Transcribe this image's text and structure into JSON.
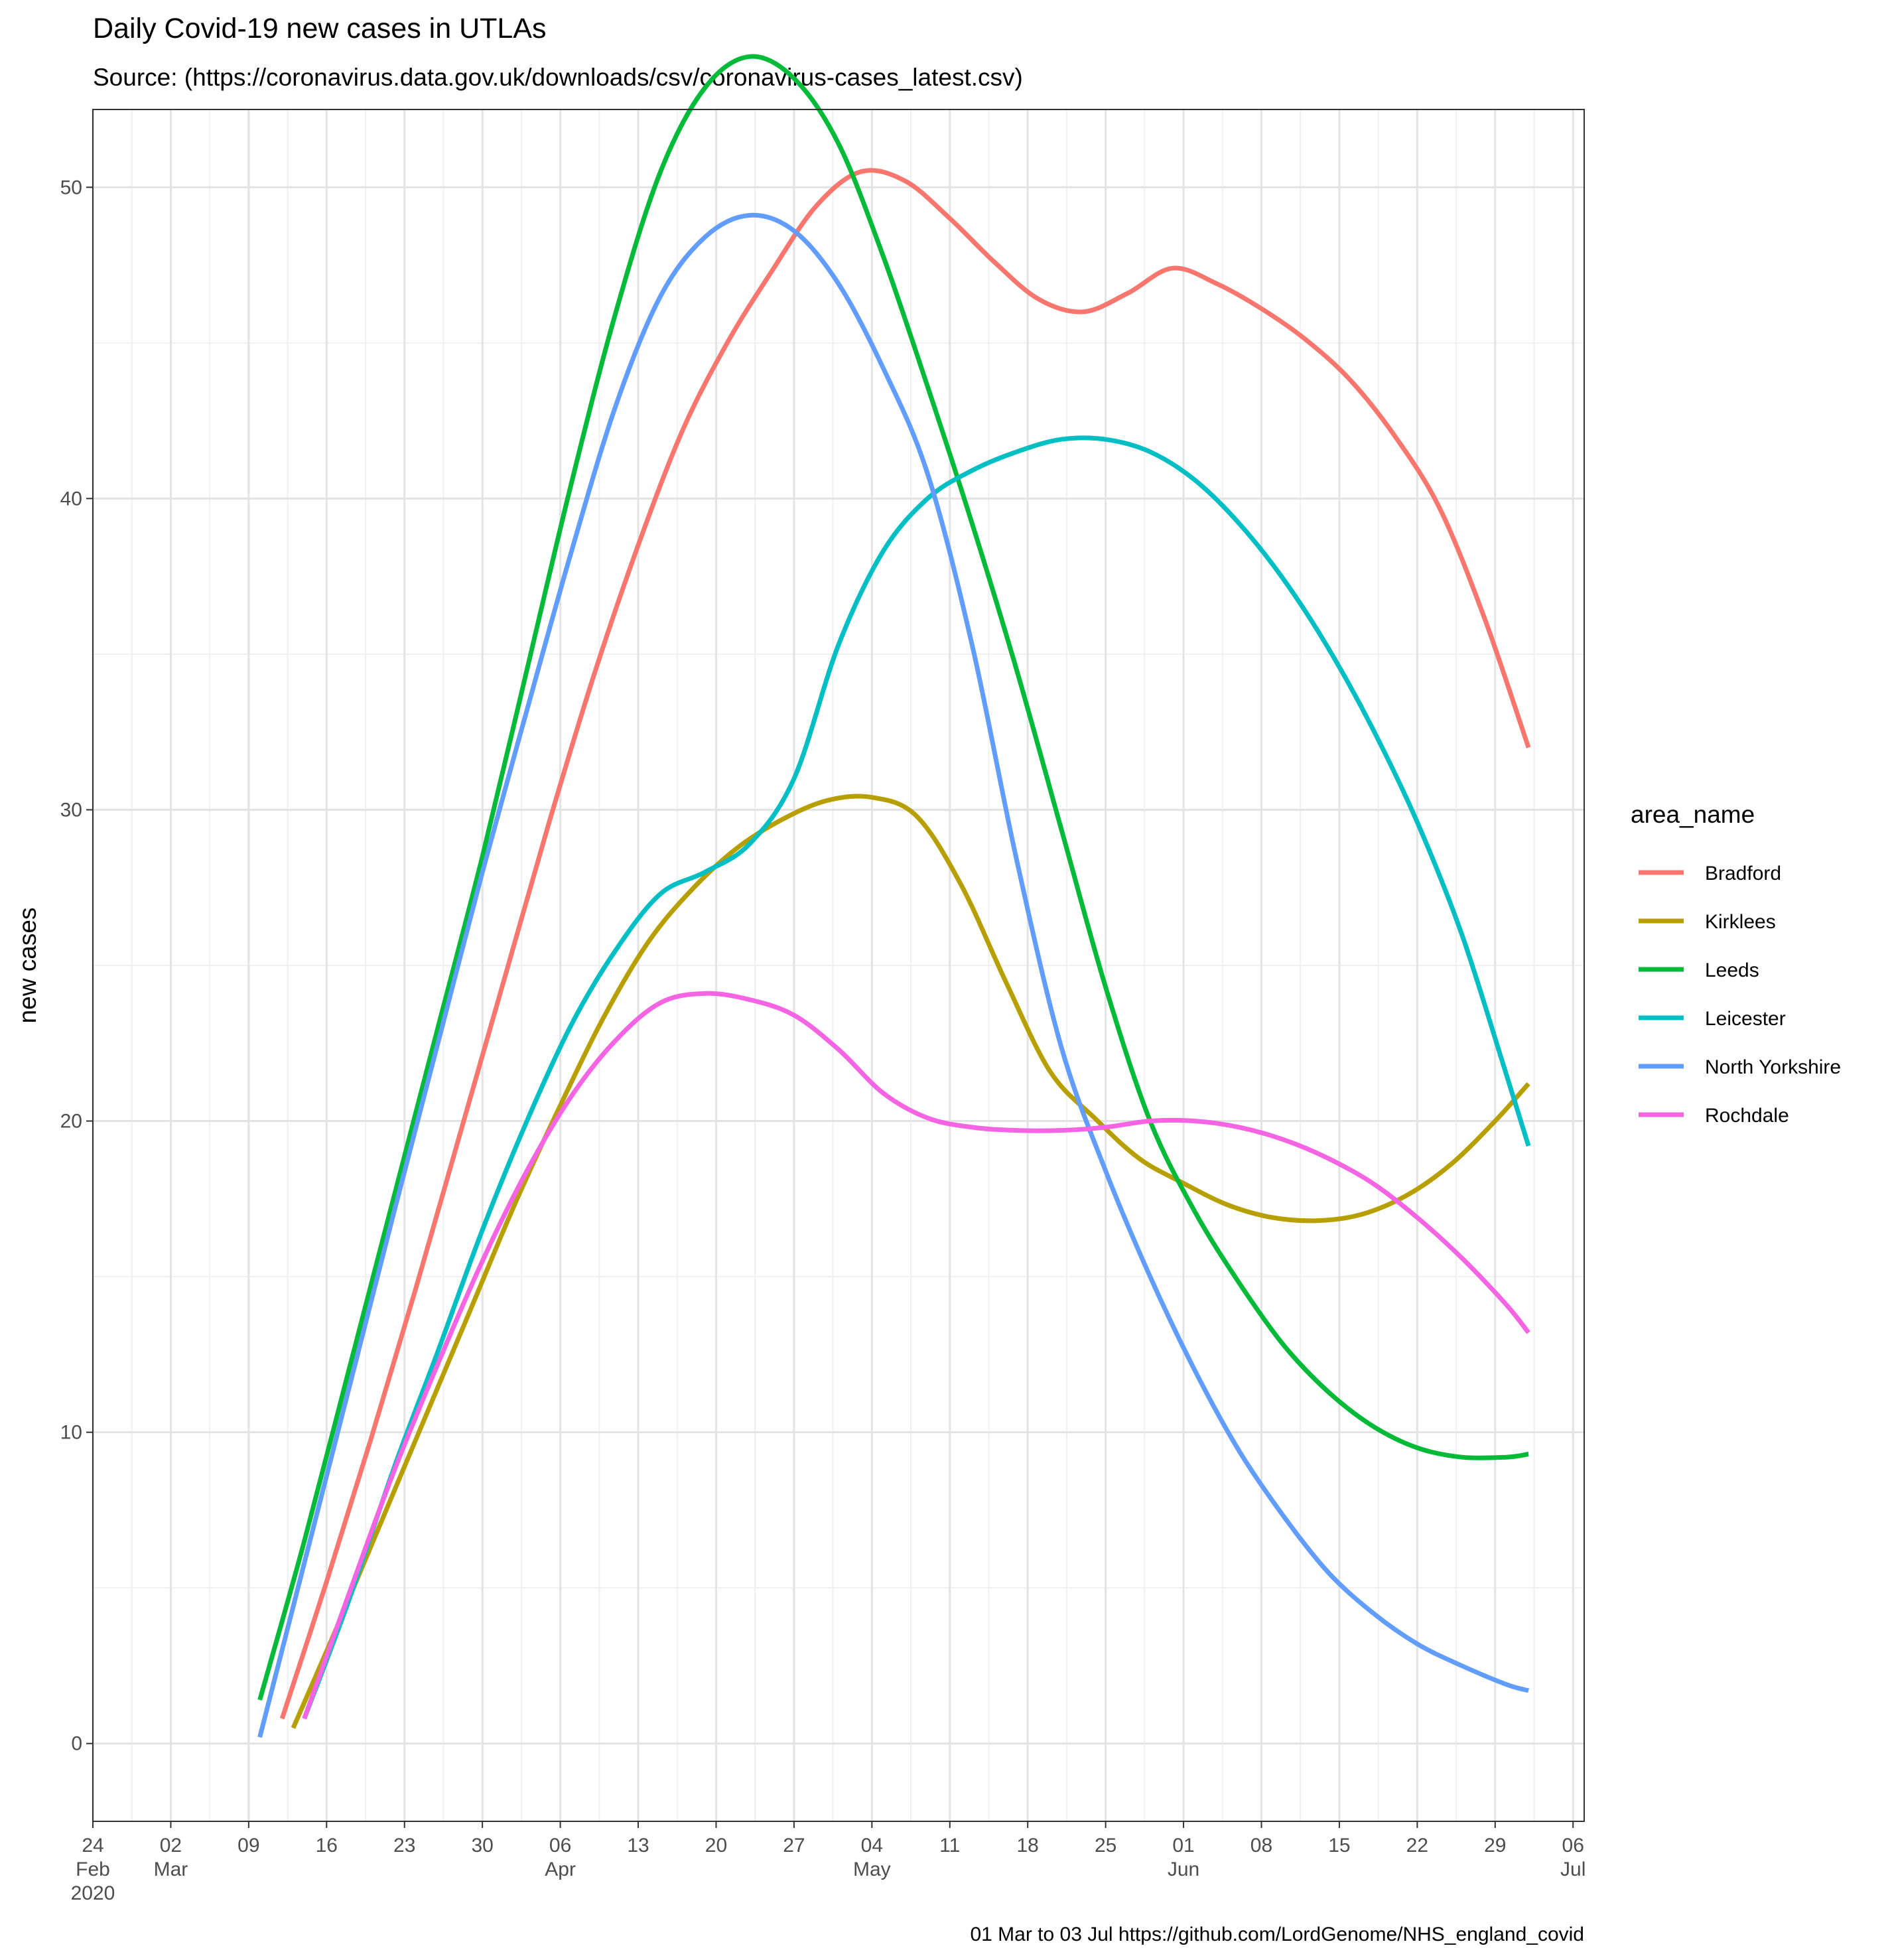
{
  "title": "Daily Covid-19 new cases in UTLAs",
  "subtitle": "Source: (https://coronavirus.data.gov.uk/downloads/csv/coronavirus-cases_latest.csv)",
  "caption": "01 Mar to 03 Jul https://github.com/LordGenome/NHS_england_covid",
  "chart_data": {
    "type": "line",
    "title": "Daily Covid-19 new cases in UTLAs",
    "subtitle": "Source: (https://coronavirus.data.gov.uk/downloads/csv/coronavirus-cases_latest.csv)",
    "xlabel": "",
    "ylabel": "new cases",
    "legend_title": "area_name",
    "legend_position": "right",
    "grid": true,
    "xlim": [
      "2020-02-24",
      "2020-07-07"
    ],
    "ylim": [
      -2.5,
      52.5
    ],
    "y_ticks": [
      0,
      10,
      20,
      30,
      40,
      50
    ],
    "x_ticks": [
      {
        "date": "2020-02-24",
        "lines": [
          "24",
          "Feb",
          "2020"
        ]
      },
      {
        "date": "2020-03-02",
        "lines": [
          "02",
          "Mar"
        ]
      },
      {
        "date": "2020-03-09",
        "lines": [
          "09"
        ]
      },
      {
        "date": "2020-03-16",
        "lines": [
          "16"
        ]
      },
      {
        "date": "2020-03-23",
        "lines": [
          "23"
        ]
      },
      {
        "date": "2020-03-30",
        "lines": [
          "30"
        ]
      },
      {
        "date": "2020-04-06",
        "lines": [
          "06",
          "Apr"
        ]
      },
      {
        "date": "2020-04-13",
        "lines": [
          "13"
        ]
      },
      {
        "date": "2020-04-20",
        "lines": [
          "20"
        ]
      },
      {
        "date": "2020-04-27",
        "lines": [
          "27"
        ]
      },
      {
        "date": "2020-05-04",
        "lines": [
          "04",
          "May"
        ]
      },
      {
        "date": "2020-05-11",
        "lines": [
          "11"
        ]
      },
      {
        "date": "2020-05-18",
        "lines": [
          "18"
        ]
      },
      {
        "date": "2020-05-25",
        "lines": [
          "25"
        ]
      },
      {
        "date": "2020-06-01",
        "lines": [
          "01",
          "Jun"
        ]
      },
      {
        "date": "2020-06-08",
        "lines": [
          "08"
        ]
      },
      {
        "date": "2020-06-15",
        "lines": [
          "15"
        ]
      },
      {
        "date": "2020-06-22",
        "lines": [
          "22"
        ]
      },
      {
        "date": "2020-06-29",
        "lines": [
          "29"
        ]
      },
      {
        "date": "2020-07-06",
        "lines": [
          "06",
          "Jul"
        ]
      }
    ],
    "series": [
      {
        "name": "Bradford",
        "color": "#F8766D",
        "x": [
          "2020-03-12",
          "2020-03-16",
          "2020-03-20",
          "2020-03-24",
          "2020-03-28",
          "2020-04-01",
          "2020-04-05",
          "2020-04-09",
          "2020-04-13",
          "2020-04-17",
          "2020-04-21",
          "2020-04-25",
          "2020-04-29",
          "2020-05-03",
          "2020-05-07",
          "2020-05-11",
          "2020-05-15",
          "2020-05-19",
          "2020-05-23",
          "2020-05-27",
          "2020-05-31",
          "2020-06-04",
          "2020-06-08",
          "2020-06-12",
          "2020-06-16",
          "2020-06-20",
          "2020-06-24",
          "2020-06-28",
          "2020-07-02"
        ],
        "y": [
          0.8,
          5.2,
          9.8,
          14.6,
          19.6,
          24.6,
          29.6,
          34.3,
          38.5,
          42.2,
          45.0,
          47.3,
          49.4,
          50.5,
          50.2,
          49.0,
          47.6,
          46.4,
          46.0,
          46.6,
          47.4,
          46.9,
          46.1,
          45.1,
          43.8,
          42.0,
          39.7,
          36.2,
          32.0
        ]
      },
      {
        "name": "Kirklees",
        "color": "#B79F00",
        "x": [
          "2020-03-13",
          "2020-03-17",
          "2020-03-21",
          "2020-03-25",
          "2020-03-29",
          "2020-04-02",
          "2020-04-06",
          "2020-04-10",
          "2020-04-14",
          "2020-04-18",
          "2020-04-22",
          "2020-04-26",
          "2020-04-30",
          "2020-05-04",
          "2020-05-08",
          "2020-05-12",
          "2020-05-16",
          "2020-05-20",
          "2020-05-24",
          "2020-05-28",
          "2020-06-01",
          "2020-06-05",
          "2020-06-09",
          "2020-06-13",
          "2020-06-17",
          "2020-06-21",
          "2020-06-25",
          "2020-06-29",
          "2020-07-02"
        ],
        "y": [
          0.5,
          3.8,
          7.2,
          10.6,
          14.0,
          17.4,
          20.5,
          23.4,
          25.8,
          27.5,
          28.8,
          29.7,
          30.3,
          30.4,
          29.8,
          27.6,
          24.5,
          21.6,
          20.1,
          18.8,
          18.0,
          17.3,
          16.9,
          16.8,
          17.0,
          17.6,
          18.6,
          20.0,
          21.2
        ]
      },
      {
        "name": "Leeds",
        "color": "#00BA38",
        "x": [
          "2020-03-10",
          "2020-03-14",
          "2020-03-18",
          "2020-03-22",
          "2020-03-26",
          "2020-03-30",
          "2020-04-03",
          "2020-04-07",
          "2020-04-11",
          "2020-04-15",
          "2020-04-19",
          "2020-04-23",
          "2020-04-27",
          "2020-05-01",
          "2020-05-05",
          "2020-05-09",
          "2020-05-13",
          "2020-05-17",
          "2020-05-21",
          "2020-05-25",
          "2020-05-29",
          "2020-06-02",
          "2020-06-06",
          "2020-06-10",
          "2020-06-14",
          "2020-06-18",
          "2020-06-22",
          "2020-06-26",
          "2020-06-30",
          "2020-07-02"
        ],
        "y": [
          1.4,
          6.5,
          12.0,
          17.5,
          23.0,
          28.5,
          34.5,
          40.5,
          46.0,
          50.5,
          53.2,
          54.2,
          53.5,
          51.4,
          47.8,
          43.6,
          39.2,
          34.5,
          29.4,
          24.3,
          20.0,
          17.1,
          14.8,
          12.8,
          11.3,
          10.2,
          9.5,
          9.2,
          9.2,
          9.3
        ]
      },
      {
        "name": "Leicester",
        "color": "#00BFC4",
        "x": [
          "2020-03-14",
          "2020-03-18",
          "2020-03-22",
          "2020-03-26",
          "2020-03-30",
          "2020-04-03",
          "2020-04-07",
          "2020-04-11",
          "2020-04-15",
          "2020-04-19",
          "2020-04-23",
          "2020-04-27",
          "2020-05-01",
          "2020-05-05",
          "2020-05-09",
          "2020-05-13",
          "2020-05-17",
          "2020-05-21",
          "2020-05-25",
          "2020-05-29",
          "2020-06-02",
          "2020-06-06",
          "2020-06-10",
          "2020-06-14",
          "2020-06-18",
          "2020-06-22",
          "2020-06-26",
          "2020-06-30",
          "2020-07-02"
        ],
        "y": [
          0.8,
          4.6,
          8.8,
          12.6,
          16.5,
          20.0,
          23.1,
          25.5,
          27.3,
          28.0,
          28.9,
          31.0,
          35.3,
          38.3,
          40.0,
          40.9,
          41.5,
          41.9,
          41.9,
          41.5,
          40.6,
          39.2,
          37.4,
          35.2,
          32.6,
          29.6,
          26.0,
          21.5,
          19.2
        ]
      },
      {
        "name": "North Yorkshire",
        "color": "#619CFF",
        "x": [
          "2020-03-10",
          "2020-03-14",
          "2020-03-18",
          "2020-03-22",
          "2020-03-26",
          "2020-03-30",
          "2020-04-03",
          "2020-04-07",
          "2020-04-11",
          "2020-04-15",
          "2020-04-19",
          "2020-04-23",
          "2020-04-27",
          "2020-05-01",
          "2020-05-05",
          "2020-05-09",
          "2020-05-13",
          "2020-05-17",
          "2020-05-21",
          "2020-05-25",
          "2020-05-29",
          "2020-06-02",
          "2020-06-06",
          "2020-06-10",
          "2020-06-14",
          "2020-06-18",
          "2020-06-22",
          "2020-06-26",
          "2020-06-30",
          "2020-07-02"
        ],
        "y": [
          0.2,
          5.8,
          11.4,
          17.0,
          22.5,
          28.0,
          33.2,
          38.3,
          43.0,
          46.5,
          48.4,
          49.1,
          48.6,
          46.9,
          44.2,
          40.8,
          35.3,
          28.4,
          22.4,
          18.4,
          15.0,
          12.0,
          9.4,
          7.3,
          5.5,
          4.2,
          3.2,
          2.5,
          1.9,
          1.7
        ]
      },
      {
        "name": "Rochdale",
        "color": "#F564E3",
        "x": [
          "2020-03-14",
          "2020-03-18",
          "2020-03-22",
          "2020-03-26",
          "2020-03-30",
          "2020-04-03",
          "2020-04-07",
          "2020-04-11",
          "2020-04-15",
          "2020-04-19",
          "2020-04-23",
          "2020-04-27",
          "2020-05-01",
          "2020-05-05",
          "2020-05-09",
          "2020-05-13",
          "2020-05-17",
          "2020-05-21",
          "2020-05-25",
          "2020-05-29",
          "2020-06-02",
          "2020-06-06",
          "2020-06-10",
          "2020-06-14",
          "2020-06-18",
          "2020-06-22",
          "2020-06-26",
          "2020-06-30",
          "2020-07-02"
        ],
        "y": [
          0.8,
          4.8,
          8.7,
          12.2,
          15.5,
          18.4,
          20.8,
          22.6,
          23.8,
          24.1,
          23.9,
          23.4,
          22.3,
          20.9,
          20.1,
          19.8,
          19.7,
          19.7,
          19.8,
          20.0,
          20.0,
          19.8,
          19.4,
          18.8,
          18.0,
          16.9,
          15.6,
          14.1,
          13.2
        ]
      }
    ]
  }
}
